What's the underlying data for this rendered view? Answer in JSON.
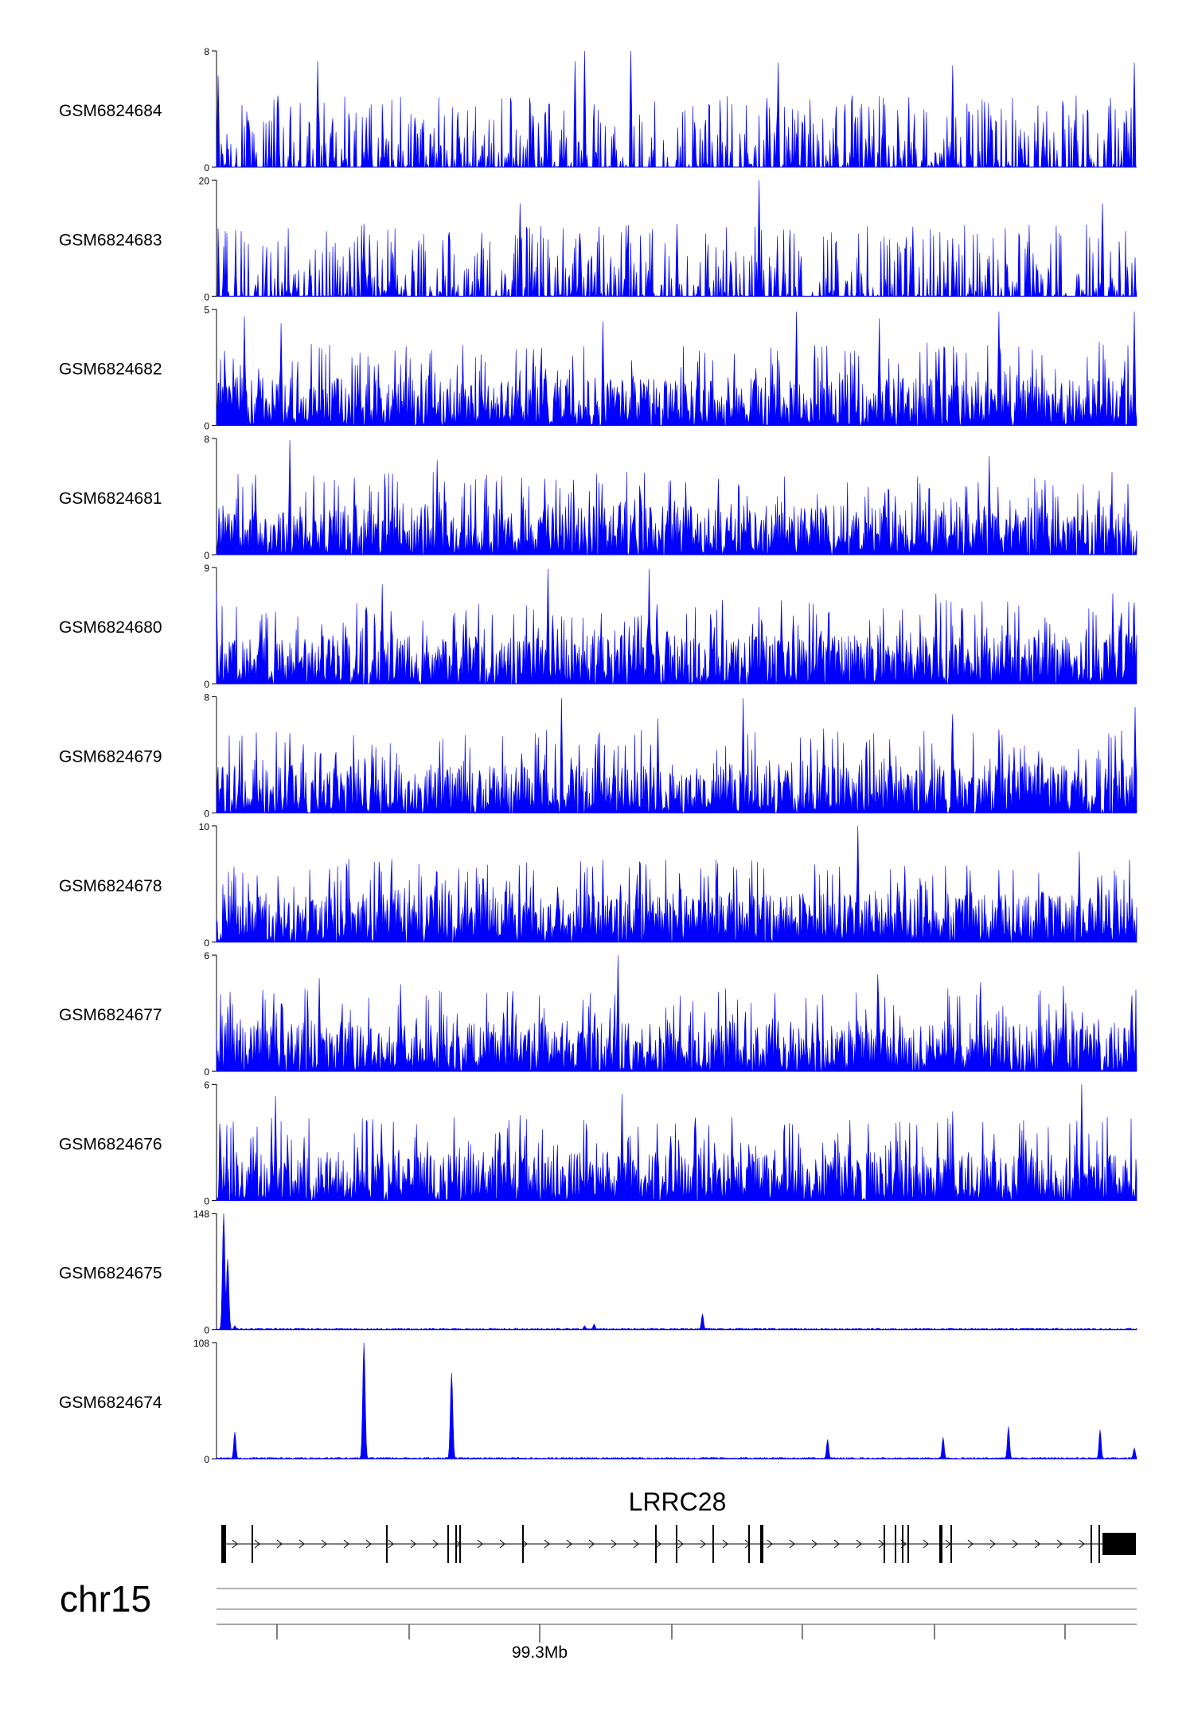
{
  "chart_data": {
    "type": "area",
    "title": "",
    "chromosome": "chr15",
    "gene": {
      "name": "LRRC28",
      "strand": "+"
    },
    "x_axis": {
      "tick_label": "99.3Mb"
    },
    "series_color": "#0000ff",
    "tracks": [
      {
        "name": "GSM6824684",
        "ymin": 0,
        "ymax": 8,
        "profile": "sparse",
        "peaks": [
          [
            0.4,
            8.0
          ],
          [
            0.45,
            8.0
          ],
          [
            0.39,
            7.3
          ],
          [
            0.61,
            7.2
          ],
          [
            0.11,
            7.3
          ],
          [
            0.8,
            7.0
          ],
          [
            0.002,
            6.3
          ],
          [
            0.997,
            7.2
          ]
        ]
      },
      {
        "name": "GSM6824683",
        "ymin": 0,
        "ymax": 20,
        "profile": "sparse",
        "peaks": [
          [
            0.59,
            20.0
          ],
          [
            0.33,
            16.0
          ],
          [
            0.963,
            16.0
          ],
          [
            0.16,
            12.5
          ],
          [
            0.5,
            12.5
          ],
          [
            0.757,
            12.0
          ],
          [
            0.8,
            10.0
          ]
        ]
      },
      {
        "name": "GSM6824682",
        "ymin": 0,
        "ymax": 5,
        "profile": "dense",
        "peaks": [
          [
            0.63,
            4.9
          ],
          [
            0.85,
            4.9
          ],
          [
            0.997,
            4.9
          ],
          [
            0.03,
            4.7
          ],
          [
            0.07,
            4.4
          ],
          [
            0.42,
            4.5
          ],
          [
            0.72,
            4.6
          ]
        ]
      },
      {
        "name": "GSM6824681",
        "ymin": 0,
        "ymax": 8,
        "profile": "dense",
        "peaks": [
          [
            0.08,
            7.9
          ],
          [
            0.24,
            6.5
          ],
          [
            0.84,
            6.8
          ],
          [
            0.31,
            5.4
          ],
          [
            0.042,
            5.5
          ],
          [
            0.51,
            5.0
          ],
          [
            0.15,
            5.3
          ]
        ]
      },
      {
        "name": "GSM6824680",
        "ymin": 0,
        "ymax": 9,
        "profile": "dense",
        "peaks": [
          [
            0.36,
            8.9
          ],
          [
            0.47,
            8.9
          ],
          [
            0.18,
            7.7
          ],
          [
            0.782,
            7.0
          ],
          [
            0.974,
            7.0
          ],
          [
            0.0,
            7.2
          ],
          [
            0.55,
            6.5
          ]
        ]
      },
      {
        "name": "GSM6824679",
        "ymin": 0,
        "ymax": 8,
        "profile": "dense",
        "peaks": [
          [
            0.375,
            7.9
          ],
          [
            0.572,
            7.9
          ],
          [
            0.998,
            7.3
          ],
          [
            0.48,
            6.5
          ],
          [
            0.8,
            6.8
          ],
          [
            0.08,
            5.5
          ],
          [
            0.66,
            5.8
          ]
        ]
      },
      {
        "name": "GSM6824678",
        "ymin": 0,
        "ymax": 10,
        "profile": "dense",
        "peaks": [
          [
            0.697,
            10.0
          ],
          [
            0.938,
            7.8
          ],
          [
            0.4,
            6.0
          ],
          [
            0.19,
            5.7
          ],
          [
            0.53,
            5.6
          ],
          [
            0.85,
            5.5
          ],
          [
            0.27,
            5.2
          ]
        ]
      },
      {
        "name": "GSM6824677",
        "ymin": 0,
        "ymax": 6,
        "profile": "dense",
        "peaks": [
          [
            0.436,
            6.0
          ],
          [
            0.719,
            5.0
          ],
          [
            0.83,
            4.6
          ],
          [
            0.112,
            4.8
          ],
          [
            0.2,
            4.5
          ],
          [
            0.92,
            4.4
          ],
          [
            0.05,
            4.2
          ]
        ]
      },
      {
        "name": "GSM6824676",
        "ymin": 0,
        "ymax": 6,
        "profile": "dense",
        "peaks": [
          [
            0.94,
            6.0
          ],
          [
            0.064,
            5.4
          ],
          [
            0.441,
            5.5
          ],
          [
            0.8,
            4.6
          ],
          [
            0.33,
            4.4
          ],
          [
            0.56,
            4.3
          ],
          [
            0.17,
            4.2
          ]
        ]
      },
      {
        "name": "GSM6824675",
        "ymin": 0,
        "ymax": 148,
        "profile": "flat",
        "peaks": [
          [
            0.008,
            148.0
          ],
          [
            0.012,
            90.0
          ],
          [
            0.528,
            20.0
          ],
          [
            0.02,
            5.0
          ],
          [
            0.4,
            5.0
          ],
          [
            0.41,
            7.0
          ]
        ]
      },
      {
        "name": "GSM6824674",
        "ymin": 0,
        "ymax": 108,
        "profile": "flat",
        "peaks": [
          [
            0.16,
            108.0
          ],
          [
            0.255,
            80.0
          ],
          [
            0.861,
            30.0
          ],
          [
            0.96,
            27.0
          ],
          [
            0.02,
            25.0
          ],
          [
            0.79,
            20.0
          ],
          [
            0.664,
            18.0
          ],
          [
            0.997,
            10.0
          ]
        ]
      }
    ]
  }
}
